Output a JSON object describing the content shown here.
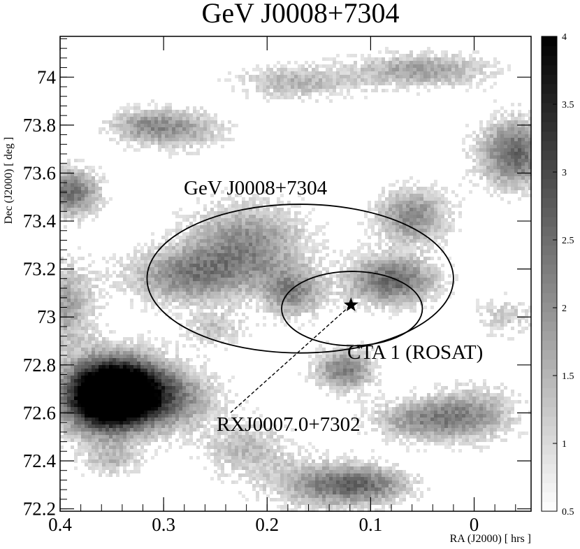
{
  "chart_data": {
    "type": "heatmap",
    "title": "GeV J0008+7304",
    "xlabel": "RA (J2000) [ hrs ]",
    "ylabel": "Dec (J2000) [ deg ]",
    "xlim": [
      0.4,
      -0.055
    ],
    "ylim": [
      72.19,
      74.17
    ],
    "x_ticks": [
      "0.4",
      "0.3",
      "0.2",
      "0.1",
      "0"
    ],
    "x_tick_values": [
      0.4,
      0.3,
      0.2,
      0.1,
      0.0
    ],
    "y_ticks": [
      "72.2",
      "72.4",
      "72.6",
      "72.8",
      "73",
      "73.2",
      "73.4",
      "73.6",
      "73.8",
      "74"
    ],
    "y_tick_values": [
      72.2,
      72.4,
      72.6,
      72.8,
      73.0,
      73.2,
      73.4,
      73.6,
      73.8,
      74.0
    ],
    "colorbar": {
      "range": [
        0.5,
        4
      ],
      "ticks": [
        "0.5",
        "1",
        "1.5",
        "2",
        "2.5",
        "3",
        "3.5",
        "4"
      ],
      "tick_values": [
        0.5,
        1.0,
        1.5,
        2.0,
        2.5,
        3.0,
        3.5,
        4.0
      ]
    },
    "intensity_blobs": [
      {
        "x": 0.36,
        "y": 72.66,
        "rx": 0.028,
        "ry": 0.1,
        "peak": 4.0
      },
      {
        "x": 0.34,
        "y": 72.7,
        "rx": 0.03,
        "ry": 0.1,
        "peak": 3.2
      },
      {
        "x": 0.3,
        "y": 72.66,
        "rx": 0.035,
        "ry": 0.09,
        "peak": 2.2
      },
      {
        "x": 0.39,
        "y": 73.52,
        "rx": 0.02,
        "ry": 0.07,
        "peak": 2.5
      },
      {
        "x": 0.395,
        "y": 73.05,
        "rx": 0.02,
        "ry": 0.12,
        "peak": 1.8
      },
      {
        "x": 0.28,
        "y": 73.17,
        "rx": 0.04,
        "ry": 0.08,
        "peak": 2.0
      },
      {
        "x": 0.22,
        "y": 73.3,
        "rx": 0.04,
        "ry": 0.12,
        "peak": 2.1
      },
      {
        "x": 0.175,
        "y": 73.1,
        "rx": 0.02,
        "ry": 0.07,
        "peak": 2.0
      },
      {
        "x": 0.08,
        "y": 73.15,
        "rx": 0.03,
        "ry": 0.07,
        "peak": 2.6
      },
      {
        "x": 0.06,
        "y": 73.42,
        "rx": 0.025,
        "ry": 0.08,
        "peak": 2.1
      },
      {
        "x": -0.04,
        "y": 73.68,
        "rx": 0.025,
        "ry": 0.1,
        "peak": 2.6
      },
      {
        "x": 0.125,
        "y": 72.78,
        "rx": 0.02,
        "ry": 0.06,
        "peak": 2.3
      },
      {
        "x": 0.05,
        "y": 72.57,
        "rx": 0.035,
        "ry": 0.06,
        "peak": 1.9
      },
      {
        "x": 0.0,
        "y": 72.6,
        "rx": 0.03,
        "ry": 0.08,
        "peak": 1.6
      },
      {
        "x": 0.14,
        "y": 72.3,
        "rx": 0.04,
        "ry": 0.07,
        "peak": 2.0
      },
      {
        "x": 0.28,
        "y": 73.78,
        "rx": 0.03,
        "ry": 0.06,
        "peak": 1.5
      },
      {
        "x": 0.17,
        "y": 73.98,
        "rx": 0.04,
        "ry": 0.05,
        "peak": 1.5
      },
      {
        "x": 0.05,
        "y": 74.03,
        "rx": 0.045,
        "ry": 0.05,
        "peak": 1.8
      },
      {
        "x": 0.32,
        "y": 73.8,
        "rx": 0.025,
        "ry": 0.05,
        "peak": 1.6
      },
      {
        "x": 0.22,
        "y": 72.45,
        "rx": 0.03,
        "ry": 0.08,
        "peak": 1.4
      },
      {
        "x": 0.1,
        "y": 72.3,
        "rx": 0.03,
        "ry": 0.05,
        "peak": 1.5
      },
      {
        "x": 0.35,
        "y": 72.4,
        "rx": 0.02,
        "ry": 0.05,
        "peak": 1.3
      },
      {
        "x": -0.03,
        "y": 73.0,
        "rx": 0.02,
        "ry": 0.06,
        "peak": 1.2
      },
      {
        "x": 0.25,
        "y": 72.95,
        "rx": 0.02,
        "ry": 0.05,
        "peak": 1.3
      }
    ],
    "annotations": [
      {
        "name": "GeV-error-circle",
        "label": "GeV J0008+7304",
        "cx": 0.168,
        "cy": 73.16,
        "rx": 0.148,
        "ry": 0.31
      },
      {
        "name": "CTA1-circle",
        "label": "CTA 1 (ROSAT)",
        "cx": 0.118,
        "cy": 73.035,
        "rx": 0.068,
        "ry": 0.155
      },
      {
        "name": "RXJ-star",
        "label": "RXJ0007.0+7302",
        "x": 0.119,
        "y": 73.05
      }
    ]
  }
}
